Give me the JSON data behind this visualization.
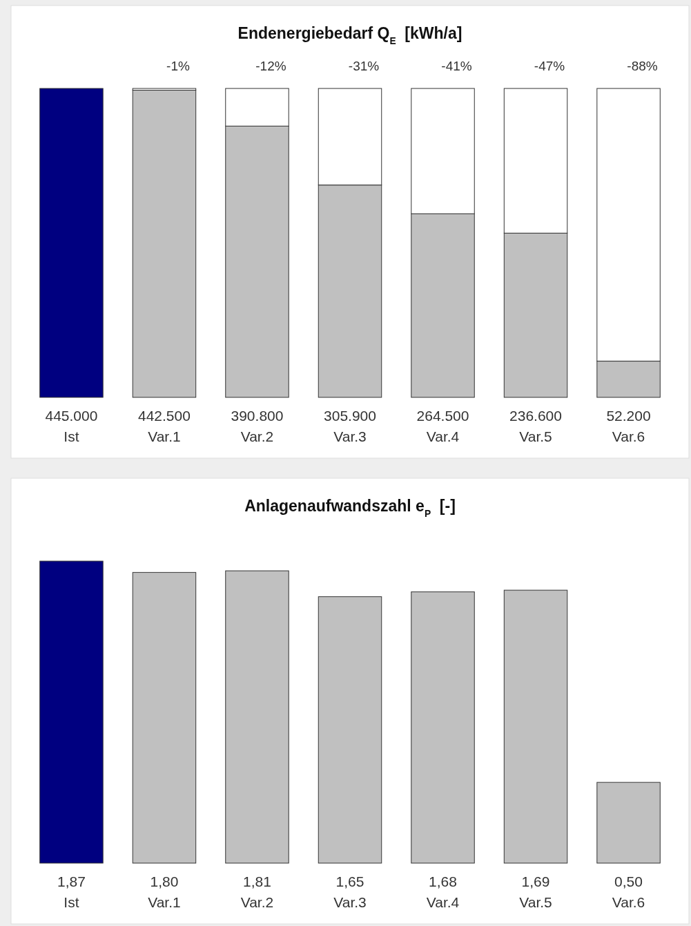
{
  "chart_data": [
    {
      "type": "bar",
      "title": "Endenergiebedarf Q$_{E}$  [kWh/a]",
      "categories": [
        "Ist",
        "Var.1",
        "Var.2",
        "Var.3",
        "Var.4",
        "Var.5",
        "Var.6"
      ],
      "stacked": true,
      "series": [
        {
          "colors": [
            "#000080",
            "#c0c0c0",
            "#c0c0c0",
            "#c0c0c0",
            "#c0c0c0",
            "#c0c0c0",
            "#c0c0c0"
          ],
          "values": [
            445000,
            442500,
            390800,
            305900,
            264500,
            236600,
            52200
          ],
          "value_labels": [
            "445.000",
            "442.500",
            "390.800",
            "305.900",
            "264.500",
            "236.600",
            "52.200"
          ]
        },
        {
          "color": "#ffffff",
          "values": [
            0,
            2500,
            54200,
            139100,
            180500,
            208400,
            392800
          ]
        }
      ],
      "annotations": [
        "-1%",
        "-12%",
        "-31%",
        "-41%",
        "-47%",
        "-88%"
      ]
    },
    {
      "type": "bar",
      "title": "Anlagenaufwandszahl e$_{P}$  [-]",
      "categories": [
        "Ist",
        "Var.1",
        "Var.2",
        "Var.3",
        "Var.4",
        "Var.5",
        "Var.6"
      ],
      "series": [
        {
          "colors": [
            "#000080",
            "#c0c0c0",
            "#c0c0c0",
            "#c0c0c0",
            "#c0c0c0",
            "#c0c0c0",
            "#c0c0c0"
          ],
          "values": [
            1.87,
            1.8,
            1.81,
            1.65,
            1.68,
            1.69,
            0.5
          ],
          "value_labels": [
            "1,87",
            "1,80",
            "1,81",
            "1,65",
            "1,68",
            "1,69",
            "0,50"
          ]
        }
      ]
    }
  ]
}
